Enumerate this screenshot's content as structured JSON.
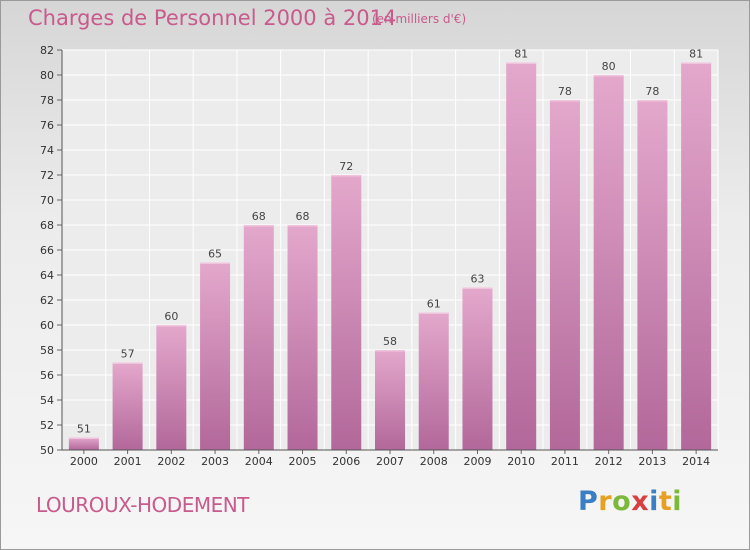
{
  "header": {
    "title": "Charges de Personnel 2000 à 2014",
    "unit": "(en milliers d'€)"
  },
  "footer": {
    "commune": "LOUROUX-HODEMENT",
    "logo_letters": [
      "P",
      "r",
      "o",
      "x",
      "i",
      "t",
      "i"
    ],
    "logo_colors": [
      "#3a7fc4",
      "#e8a020",
      "#7cb83a",
      "#d64040",
      "#3a7fc4",
      "#e8a020",
      "#7cb83a"
    ]
  },
  "chart_data": {
    "type": "bar",
    "title": "Charges de Personnel 2000 à 2014",
    "subtitle": "(en milliers d'€)",
    "categories": [
      "2000",
      "2001",
      "2002",
      "2003",
      "2004",
      "2005",
      "2006",
      "2007",
      "2008",
      "2009",
      "2010",
      "2011",
      "2012",
      "2013",
      "2014"
    ],
    "values": [
      51,
      57,
      60,
      65,
      68,
      68,
      72,
      58,
      61,
      63,
      81,
      78,
      80,
      78,
      81
    ],
    "value_labels": [
      "51",
      "57",
      "60",
      "65",
      "68",
      "68",
      "72",
      "58",
      "61",
      "63",
      "81",
      "78",
      "80",
      "78",
      "81"
    ],
    "ylim": [
      50,
      82
    ],
    "yticks": [
      "50",
      "52",
      "54",
      "56",
      "58",
      "60",
      "62",
      "64",
      "66",
      "68",
      "70",
      "72",
      "74",
      "76",
      "78",
      "80",
      "82"
    ],
    "grid": true,
    "bar_color": "#d88ab4"
  }
}
